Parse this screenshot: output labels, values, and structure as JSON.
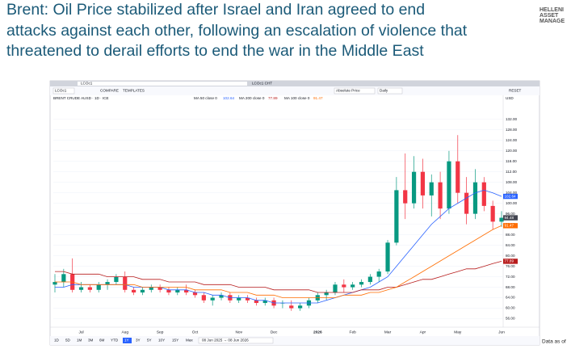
{
  "header": {
    "title_lines": [
      "Brent: Oil Price stabilized after Israel and Iran agreed to end",
      "attacks against each other, following an escalation of violence that",
      "threatened to derail efforts to end the war in the Middle East"
    ],
    "logo_lines": [
      "HELLENI",
      "ASSET",
      "MANAGE"
    ]
  },
  "toolbar": {
    "symbol": "LCOc1",
    "compare": "COMPARE",
    "templates": "TEMPLATES",
    "tab": "LCOc1 CHT",
    "price_mode": "Absolute Price",
    "interval": "Daily",
    "reset": "RESET",
    "currency": "USD"
  },
  "ranges": [
    "1D",
    "5D",
    "1M",
    "3M",
    "6M",
    "YTD",
    "1Y",
    "3Y",
    "5Y",
    "10Y",
    "15Y",
    "Max"
  ],
  "active_range": "1Y",
  "date_range": "08 Jun 2025 → 08 Jun 2026",
  "footer": {
    "note": "Data as of"
  },
  "chart_data": {
    "type": "candlestick",
    "subtitle": "BRENT CRUDE AUSD · 1D · ICE",
    "categories": [
      null,
      null,
      null,
      "Jul",
      null,
      null,
      null,
      null,
      "Aug",
      null,
      null,
      null,
      "Sep",
      null,
      null,
      null,
      "Oct",
      null,
      null,
      null,
      null,
      "Nov",
      null,
      null,
      null,
      "Dec",
      null,
      null,
      null,
      null,
      "2026",
      null,
      null,
      null,
      "Feb",
      null,
      null,
      null,
      "Mar",
      null,
      null,
      null,
      "Apr",
      null,
      null,
      null,
      "May",
      null,
      null,
      null,
      null,
      "Jun"
    ],
    "open": [
      69,
      70,
      73,
      67,
      68,
      67,
      69,
      70,
      72,
      67,
      66,
      67,
      68,
      67,
      66,
      67,
      66,
      65,
      63,
      64,
      65,
      63,
      64,
      63,
      62,
      63,
      62,
      61,
      60,
      61,
      63,
      65,
      66,
      69,
      68,
      69,
      70,
      72,
      74,
      85,
      105,
      100,
      112,
      103,
      108,
      98,
      116,
      104,
      96,
      108,
      99,
      93
    ],
    "high": [
      73,
      75,
      79,
      70,
      69,
      70,
      71,
      73,
      74,
      68,
      68,
      69,
      69,
      68,
      68,
      69,
      67,
      66,
      65,
      66,
      66,
      65,
      65,
      64,
      64,
      64,
      63,
      63,
      62,
      64,
      66,
      67,
      70,
      71,
      70,
      71,
      73,
      75,
      86,
      110,
      119,
      118,
      117,
      111,
      112,
      120,
      126,
      110,
      113,
      110,
      101,
      97
    ],
    "low": [
      66,
      68,
      66,
      66,
      66,
      66,
      67,
      69,
      66,
      65,
      65,
      66,
      66,
      65,
      65,
      65,
      64,
      62,
      61,
      63,
      62,
      62,
      62,
      61,
      61,
      60,
      60,
      59,
      59,
      60,
      62,
      63,
      65,
      66,
      67,
      68,
      69,
      70,
      73,
      84,
      94,
      98,
      98,
      95,
      94,
      96,
      100,
      92,
      94,
      97,
      90,
      91
    ],
    "close": [
      70,
      73,
      67,
      68,
      67,
      69,
      70,
      72,
      67,
      66,
      67,
      68,
      67,
      66,
      67,
      66,
      65,
      63,
      64,
      65,
      63,
      64,
      63,
      62,
      63,
      61,
      62,
      60,
      61,
      63,
      65,
      66,
      69,
      68,
      69,
      70,
      72,
      74,
      85,
      105,
      100,
      112,
      103,
      108,
      98,
      116,
      104,
      96,
      108,
      99,
      93,
      94.48
    ],
    "up_color": "#089981",
    "down_color": "#f23645",
    "close_tag_color": "#434651",
    "series": [
      {
        "name": "MA 50 close 0",
        "color": "#2962ff",
        "values": [
          68,
          68,
          69,
          69,
          69,
          69,
          69,
          69,
          69,
          68,
          68,
          68,
          68,
          67,
          67,
          67,
          66,
          66,
          65,
          65,
          64,
          64,
          64,
          63,
          63,
          62,
          62,
          62,
          62,
          62,
          62,
          63,
          64,
          65,
          66,
          67,
          68,
          70,
          72,
          76,
          80,
          84,
          88,
          92,
          95,
          98,
          100,
          102,
          104,
          105,
          104,
          102.64
        ]
      },
      {
        "name": "MA 200 close 0",
        "color": "#b71c1c",
        "values": [
          74,
          74,
          73,
          73,
          73,
          73,
          72,
          72,
          72,
          72,
          71,
          71,
          71,
          70,
          70,
          70,
          70,
          69,
          69,
          69,
          69,
          68,
          68,
          68,
          68,
          67,
          67,
          67,
          67,
          67,
          66,
          66,
          66,
          66,
          66,
          67,
          67,
          67,
          68,
          68,
          69,
          70,
          71,
          71,
          72,
          73,
          74,
          75,
          75,
          76,
          77,
          77.89
        ]
      },
      {
        "name": "MA 100 close 0",
        "color": "#ff6d00",
        "values": [
          70,
          70,
          70,
          69,
          69,
          69,
          69,
          69,
          69,
          69,
          68,
          68,
          68,
          68,
          68,
          68,
          67,
          67,
          67,
          67,
          66,
          66,
          66,
          65,
          65,
          65,
          64,
          64,
          64,
          64,
          64,
          64,
          64,
          65,
          65,
          65,
          66,
          66,
          67,
          68,
          70,
          72,
          74,
          76,
          78,
          80,
          82,
          84,
          86,
          88,
          90,
          91.47
        ]
      }
    ],
    "ylim": [
      54,
      135
    ],
    "yticks": [
      {
        "value": 56,
        "label": "56.00"
      },
      {
        "value": 60,
        "label": "60.00"
      },
      {
        "value": 64,
        "label": "64.00"
      },
      {
        "value": 68,
        "label": "68.00"
      },
      {
        "value": 72,
        "label": "72.00"
      },
      {
        "value": 76,
        "label": "76.00"
      },
      {
        "value": 80,
        "label": "80.00"
      },
      {
        "value": 84,
        "label": "84.00"
      },
      {
        "value": 88,
        "label": "88.00"
      },
      {
        "value": 92,
        "label": "92.00"
      },
      {
        "value": 96,
        "label": "96.00"
      },
      {
        "value": 100,
        "label": "100.00"
      },
      {
        "value": 104,
        "label": "104.00"
      },
      {
        "value": 108,
        "label": "108.00"
      },
      {
        "value": 112,
        "label": "112.00"
      },
      {
        "value": 116,
        "label": "116.00"
      },
      {
        "value": 120,
        "label": "120.00"
      },
      {
        "value": 124,
        "label": "124.00"
      },
      {
        "value": 128,
        "label": "128.00"
      },
      {
        "value": 132,
        "label": "132.00"
      }
    ],
    "grid": true
  }
}
